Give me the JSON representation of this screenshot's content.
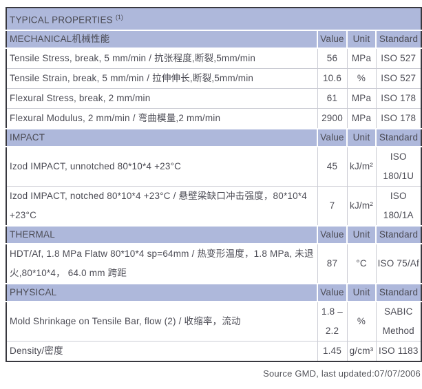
{
  "title": "TYPICAL PROPERTIES",
  "title_note": "(1)",
  "column_headers": [
    "Value",
    "Unit",
    "Standard"
  ],
  "sections": [
    {
      "name": "MECHANICAL机械性能",
      "rows": [
        {
          "property": "Tensile Stress, break, 5 mm/min / 抗张程度,断裂,5mm/min",
          "value": "56",
          "unit": "MPa",
          "standard": "ISO 527"
        },
        {
          "property": "Tensile Strain, break, 5 mm/min / 拉伸伸长,断裂,5mm/min",
          "value": "10.6",
          "unit": "%",
          "standard": "ISO 527"
        },
        {
          "property": "Flexural Stress, break, 2 mm/min",
          "value": "61",
          "unit": "MPa",
          "standard": "ISO 178"
        },
        {
          "property": "Flexural Modulus, 2 mm/min / 弯曲模量,2 mm/min",
          "value": "2900",
          "unit": "MPa",
          "standard": "ISO 178"
        }
      ]
    },
    {
      "name": "IMPACT",
      "rows": [
        {
          "property": "Izod IMPACT, unnotched 80*10*4 +23°C",
          "value": "45",
          "unit": "kJ/m²",
          "standard": "ISO 180/1U"
        },
        {
          "property": "Izod IMPACT, notched 80*10*4 +23°C / 悬壁梁缺口冲击强度，80*10*4 +23°C",
          "value": "7",
          "unit": "kJ/m²",
          "standard": "ISO 180/1A"
        }
      ]
    },
    {
      "name": "THERMAL",
      "rows": [
        {
          "property": "HDT/Af, 1.8 MPa Flatw 80*10*4 sp=64mm / 热变形温度，1.8 MPa, 未退火,80*10*4， 64.0 mm 跨距",
          "value": "87",
          "unit": "°C",
          "standard": "ISO 75/Af"
        }
      ]
    },
    {
      "name": "PHYSICAL",
      "rows": [
        {
          "property": "Mold Shrinkage on Tensile Bar, flow (2) / 收缩率，流动",
          "value": "1.8 – 2.2",
          "unit": "%",
          "standard": "SABIC Method"
        },
        {
          "property": "Density/密度",
          "value": "1.45",
          "unit": "g/cm³",
          "standard": "ISO 1183"
        }
      ]
    }
  ],
  "footer": "Source GMD, last updated:07/07/2006",
  "colors": {
    "band_background": "#aeb8db",
    "text": "#4b4b54",
    "grid_border": "#cbccd4",
    "outer_border": "#38383f"
  }
}
